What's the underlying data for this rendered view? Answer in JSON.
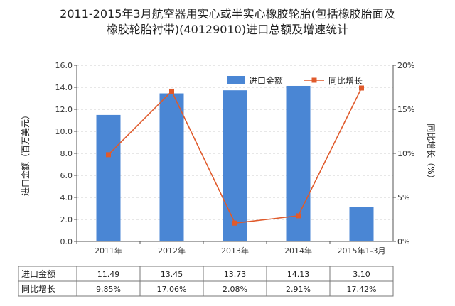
{
  "chart_data": {
    "type": "bar",
    "title_lines": [
      "2011-2015年3月航空器用实心或半实心橡胶轮胎(包括橡胶胎面及",
      "橡胶轮胎衬带)(40129010)进口总额及增速统计"
    ],
    "categories": [
      "2011年",
      "2012年",
      "2013年",
      "2014年",
      "2015年1-3月"
    ],
    "series": [
      {
        "name": "进口金额",
        "type": "bar",
        "axis": "left",
        "color": "#4a86d4",
        "values": [
          11.49,
          13.45,
          13.73,
          14.13,
          3.1
        ]
      },
      {
        "name": "同比增长",
        "type": "line",
        "axis": "right",
        "color": "#e05a2b",
        "values": [
          9.85,
          17.06,
          2.08,
          2.91,
          17.42
        ]
      }
    ],
    "ylabel_left": "进口金额（百万美元）",
    "ylabel_right": "同比增长（%）",
    "ylim_left": [
      0,
      16
    ],
    "left_ticks": [
      "0.0",
      "2.0",
      "4.0",
      "6.0",
      "8.0",
      "10.0",
      "12.0",
      "14.0",
      "16.0"
    ],
    "ylim_right": [
      0,
      20
    ],
    "right_ticks": [
      "0%",
      "5%",
      "10%",
      "15%",
      "20%"
    ],
    "legend_position": "top-right",
    "table": {
      "rows": [
        {
          "label": "进口金额",
          "cells": [
            "11.49",
            "13.45",
            "13.73",
            "14.13",
            "3.10"
          ]
        },
        {
          "label": "同比增长",
          "cells": [
            "9.85%",
            "17.06%",
            "2.08%",
            "2.91%",
            "17.42%"
          ]
        }
      ]
    }
  }
}
